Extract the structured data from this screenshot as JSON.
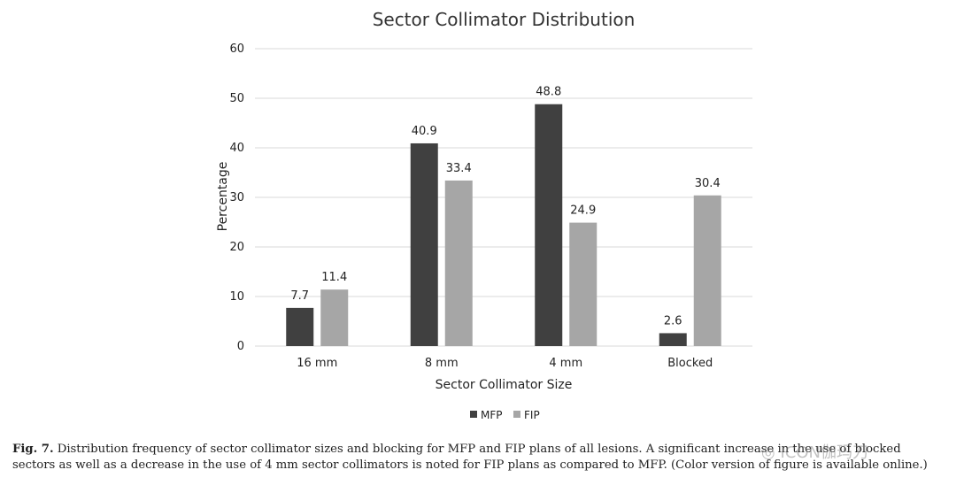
{
  "chart_data": {
    "type": "bar",
    "title": "Sector Collimator Distribution",
    "xlabel": "Sector Collimator Size",
    "ylabel": "Percentage",
    "categories": [
      "16 mm",
      "8 mm",
      "4 mm",
      "Blocked"
    ],
    "series": [
      {
        "name": "MFP",
        "values": [
          7.7,
          40.9,
          48.8,
          2.6
        ],
        "color": "#404040"
      },
      {
        "name": "FIP",
        "values": [
          11.4,
          33.4,
          24.9,
          30.4
        ],
        "color": "#a6a6a6"
      }
    ],
    "ylim": [
      0,
      60
    ],
    "yticks": [
      0,
      10,
      20,
      30,
      40,
      50,
      60
    ],
    "grid": true,
    "legend_position": "bottom"
  },
  "caption": {
    "label": "Fig. 7.",
    "text": "Distribution frequency of sector collimator sizes and blocking for MFP and FIP plans of all lesions. A significant increase in the use of blocked sectors as well as a decrease in the use of 4 mm sector collimators is noted for FIP plans as compared to MFP. (Color version of figure is available online.)"
  },
  "watermark": {
    "text": "ICON伽玛刀",
    "icon": "wechat-icon"
  }
}
